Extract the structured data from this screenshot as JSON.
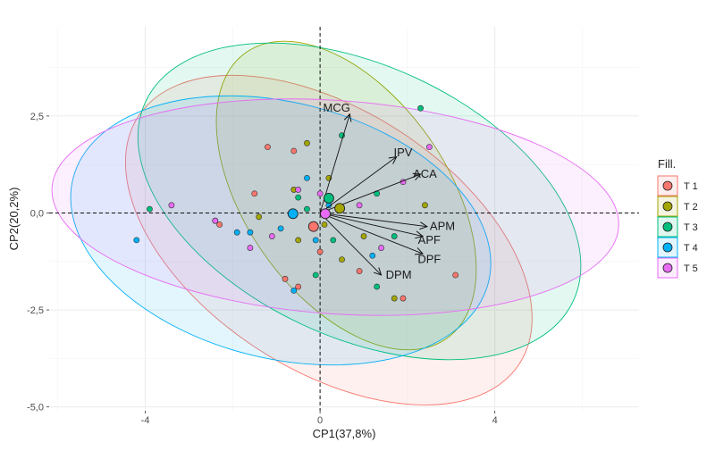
{
  "chart_data": {
    "type": "scatter",
    "xlabel": "CP1(37,8%)",
    "ylabel": "CP2(20,2%)",
    "xlim": [
      -6.2,
      7.3
    ],
    "ylim": [
      -5.1,
      4.8
    ],
    "x_ticks": [
      -4,
      0,
      4
    ],
    "x_tick_labels": [
      "-4",
      "0",
      "4"
    ],
    "y_ticks": [
      -5,
      -2.5,
      0,
      2.5
    ],
    "y_tick_labels": [
      "-5,0",
      "-2,5",
      "0,0",
      "2,5"
    ],
    "grid": true,
    "legend": {
      "title": "Fill.",
      "placement": "right",
      "entries": [
        {
          "label": "T 1",
          "color": "#F8766D"
        },
        {
          "label": "T 2",
          "color": "#A3A500"
        },
        {
          "label": "T 3",
          "color": "#00BF7D"
        },
        {
          "label": "T 4",
          "color": "#00B0F6"
        },
        {
          "label": "T 5",
          "color": "#E76BF3"
        }
      ]
    },
    "groups": [
      {
        "name": "T 1",
        "color": "#F8766D",
        "centroid": [
          -0.15,
          -0.35
        ],
        "ellipse": {
          "cx": 0.2,
          "cy": -0.7,
          "rx": 5.2,
          "ry": 3.35,
          "angle_deg": -33
        },
        "points": [
          [
            -1.2,
            1.7
          ],
          [
            -1.5,
            0.5
          ],
          [
            -2.3,
            -0.3
          ],
          [
            -0.6,
            1.6
          ],
          [
            -0.5,
            -1.9
          ],
          [
            0.9,
            -1.5
          ],
          [
            3.1,
            -1.6
          ],
          [
            1.9,
            -2.2
          ],
          [
            0.0,
            -1.0
          ],
          [
            -0.8,
            -1.7
          ]
        ]
      },
      {
        "name": "T 2",
        "color": "#A3A500",
        "centroid": [
          0.45,
          0.12
        ],
        "ellipse": {
          "cx": 0.6,
          "cy": 0.45,
          "rx": 4.0,
          "ry": 2.6,
          "angle_deg": -55
        },
        "points": [
          [
            -0.3,
            1.8
          ],
          [
            -0.6,
            0.6
          ],
          [
            0.2,
            0.9
          ],
          [
            2.4,
            0.2
          ],
          [
            1.0,
            -0.6
          ],
          [
            1.7,
            -2.2
          ],
          [
            -0.5,
            -0.7
          ],
          [
            0.5,
            -1.2
          ],
          [
            -1.4,
            -0.1
          ],
          [
            0.1,
            -0.3
          ]
        ]
      },
      {
        "name": "T 3",
        "color": "#00BF7D",
        "centroid": [
          0.2,
          0.38
        ],
        "ellipse": {
          "cx": 0.9,
          "cy": 0.3,
          "rx": 5.4,
          "ry": 3.5,
          "angle_deg": -25
        },
        "points": [
          [
            2.3,
            2.7
          ],
          [
            0.5,
            2.0
          ],
          [
            -3.9,
            0.1
          ],
          [
            1.3,
            0.5
          ],
          [
            -0.3,
            0.1
          ],
          [
            1.3,
            -1.9
          ],
          [
            -0.1,
            -1.6
          ],
          [
            1.7,
            -0.6
          ],
          [
            -0.5,
            0.4
          ],
          [
            0.3,
            -0.7
          ]
        ]
      },
      {
        "name": "T 4",
        "color": "#00B0F6",
        "centroid": [
          -0.62,
          -0.02
        ],
        "ellipse": {
          "cx": -0.9,
          "cy": -0.45,
          "rx": 4.9,
          "ry": 3.3,
          "angle_deg": -14
        },
        "points": [
          [
            -4.2,
            -0.7
          ],
          [
            -1.9,
            -0.5
          ],
          [
            -1.6,
            -0.5
          ],
          [
            -0.6,
            -2.0
          ],
          [
            -0.3,
            0.9
          ],
          [
            1.2,
            -1.1
          ],
          [
            -2.4,
            -0.2
          ],
          [
            -0.9,
            -0.4
          ],
          [
            0.2,
            0.2
          ],
          [
            -0.1,
            -0.7
          ]
        ]
      },
      {
        "name": "T 5",
        "color": "#E76BF3",
        "centroid": [
          0.12,
          -0.02
        ],
        "ellipse": {
          "cx": 0.35,
          "cy": 0.15,
          "rx": 6.5,
          "ry": 2.75,
          "angle_deg": -4
        },
        "points": [
          [
            -3.4,
            0.2
          ],
          [
            -2.4,
            -0.2
          ],
          [
            -1.6,
            -0.9
          ],
          [
            1.9,
            0.8
          ],
          [
            0.9,
            0.2
          ],
          [
            2.5,
            1.7
          ],
          [
            1.4,
            -0.9
          ],
          [
            -0.5,
            0.6
          ],
          [
            0.0,
            0.5
          ],
          [
            -1.1,
            -0.6
          ]
        ]
      }
    ],
    "loadings": [
      {
        "label": "MCG",
        "x": 0.68,
        "y": 2.55
      },
      {
        "label": "IPV",
        "x": 1.75,
        "y": 1.45
      },
      {
        "label": "ACA",
        "x": 2.3,
        "y": 1.0
      },
      {
        "label": "APM",
        "x": 2.45,
        "y": -0.35
      },
      {
        "label": "APF",
        "x": 2.35,
        "y": -0.6
      },
      {
        "label": "DPF",
        "x": 2.35,
        "y": -1.05
      },
      {
        "label": "DPM",
        "x": 1.4,
        "y": -1.6
      }
    ],
    "loading_label_offsets": {
      "MCG": [
        -0.3,
        0.15
      ],
      "IPV": [
        0.15,
        0.1
      ],
      "ACA": [
        0.1,
        0.0
      ],
      "APM": [
        0.35,
        0.0
      ],
      "APF": [
        0.15,
        -0.1
      ],
      "DPF": [
        0.15,
        -0.15
      ],
      "DPM": [
        0.4,
        0.0
      ]
    }
  }
}
